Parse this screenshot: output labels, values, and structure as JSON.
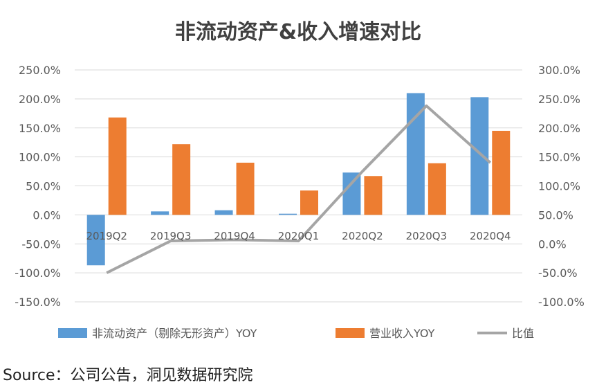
{
  "chart_data": {
    "type": "bar",
    "title": "非流动资产&收入增速对比",
    "categories": [
      "2019Q2",
      "2019Q3",
      "2019Q4",
      "2020Q1",
      "2020Q2",
      "2020Q3",
      "2020Q4"
    ],
    "series": [
      {
        "name": "非流动资产（剔除无形资产）YOY",
        "type": "bar",
        "axis": "left",
        "color": "#5B9BD5",
        "values": [
          -87,
          6,
          8,
          2,
          73,
          210,
          203
        ]
      },
      {
        "name": "营业收入YOY",
        "type": "bar",
        "axis": "left",
        "color": "#ED7D31",
        "values": [
          168,
          122,
          90,
          42,
          67,
          89,
          145
        ]
      },
      {
        "name": "比值",
        "type": "line",
        "axis": "right",
        "color": "#A5A5A5",
        "values": [
          -50,
          5,
          7,
          5,
          125,
          238,
          140
        ]
      }
    ],
    "y_left": {
      "min": -150,
      "max": 250,
      "step": 50,
      "tick_labels": [
        "-150.0%",
        "-100.0%",
        "-50.0%",
        "0.0%",
        "50.0%",
        "100.0%",
        "150.0%",
        "200.0%",
        "250.0%"
      ]
    },
    "y_right": {
      "min": -100,
      "max": 300,
      "step": 50,
      "tick_labels": [
        "-100.0%",
        "-50.0%",
        "0.0%",
        "50.0%",
        "100.0%",
        "150.0%",
        "200.0%",
        "250.0%",
        "300.0%"
      ]
    },
    "grid": true,
    "legend": "bottom"
  },
  "source": "Source：公司公告，洞见数据研究院"
}
